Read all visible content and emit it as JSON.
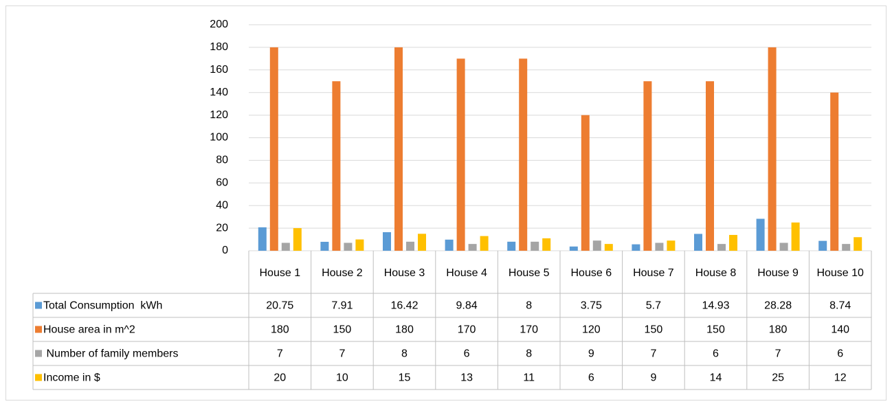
{
  "chart_data": {
    "type": "bar",
    "categories": [
      "House 1",
      "House 2",
      "House 3",
      "House 4",
      "House 5",
      "House 6",
      "House 7",
      "House 8",
      "House 9",
      "House 10"
    ],
    "series": [
      {
        "name": "Total Consumption  kWh",
        "color": "#5b9bd5",
        "values": [
          20.75,
          7.91,
          16.42,
          9.84,
          8,
          3.75,
          5.7,
          14.93,
          28.28,
          8.74
        ]
      },
      {
        "name": "House area in m^2",
        "color": "#ed7d31",
        "values": [
          180,
          150,
          180,
          170,
          170,
          120,
          150,
          150,
          180,
          140
        ]
      },
      {
        "name": " Number of family members",
        "color": "#a5a5a5",
        "values": [
          7,
          7,
          8,
          6,
          8,
          9,
          7,
          6,
          7,
          6
        ]
      },
      {
        "name": "Income in $",
        "color": "#ffc000",
        "values": [
          20,
          10,
          15,
          13,
          11,
          6,
          9,
          14,
          25,
          12
        ]
      }
    ],
    "ylim": [
      0,
      200
    ],
    "yticks": [
      0,
      20,
      40,
      60,
      80,
      100,
      120,
      140,
      160,
      180,
      200
    ],
    "grid": true
  }
}
